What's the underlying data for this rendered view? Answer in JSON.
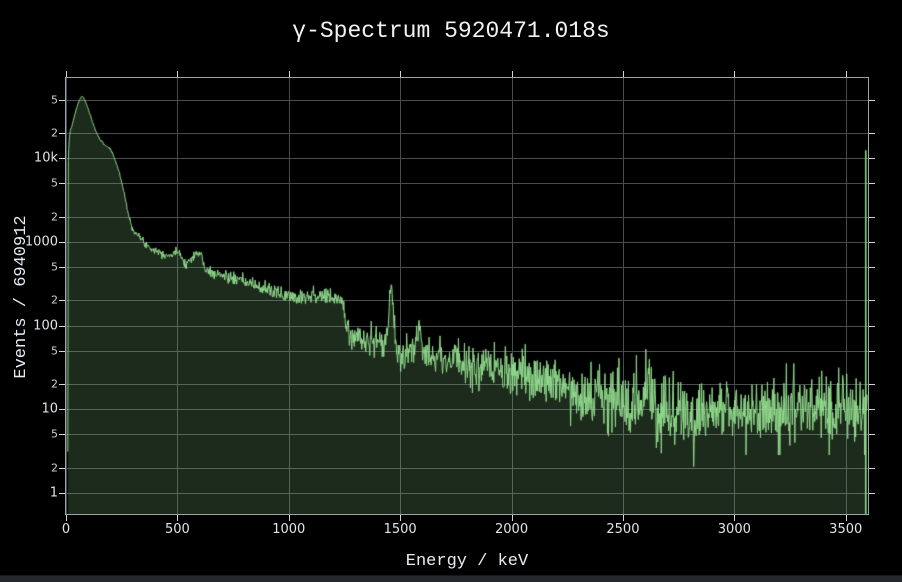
{
  "chart": {
    "title": "γ-Spectrum 5920471.018s",
    "x_axis_title": "Energy / keV",
    "y_axis_title": "Events / 6940912"
  },
  "chart_data": {
    "type": "area",
    "title": "γ-Spectrum 5920471.018s",
    "xlabel": "Energy / keV",
    "ylabel": "Events / 6940912",
    "total_events": "6940912",
    "live_time_s": "5920471.018",
    "xlim": [
      0,
      3600
    ],
    "ylim": [
      0.56,
      91000
    ],
    "yscale": "log",
    "grid": true,
    "legend": "none",
    "colors": {
      "background": "#000000",
      "line": "#90d98c",
      "fill": "rgba(144,217,140,0.20)",
      "gridline": "#474c50",
      "frame": "#9ba2a8",
      "tick": "#cfd5da",
      "text": "#e9edf2"
    },
    "xticks": [
      {
        "v": 0,
        "label": "0"
      },
      {
        "v": 500,
        "label": "500"
      },
      {
        "v": 1000,
        "label": "1000"
      },
      {
        "v": 1500,
        "label": "1500"
      },
      {
        "v": 2000,
        "label": "2000"
      },
      {
        "v": 2500,
        "label": "2500"
      },
      {
        "v": 3000,
        "label": "3000"
      },
      {
        "v": 3500,
        "label": "3500"
      }
    ],
    "yticks": [
      {
        "v": 1,
        "label": "1",
        "major": true
      },
      {
        "v": 2,
        "label": "2",
        "major": false
      },
      {
        "v": 5,
        "label": "5",
        "major": false
      },
      {
        "v": 10,
        "label": "10",
        "major": true
      },
      {
        "v": 20,
        "label": "2",
        "major": false
      },
      {
        "v": 50,
        "label": "5",
        "major": false
      },
      {
        "v": 100,
        "label": "100",
        "major": true
      },
      {
        "v": 200,
        "label": "2",
        "major": false
      },
      {
        "v": 500,
        "label": "5",
        "major": false
      },
      {
        "v": 1000,
        "label": "1000",
        "major": true
      },
      {
        "v": 2000,
        "label": "2",
        "major": false
      },
      {
        "v": 5000,
        "label": "5",
        "major": false
      },
      {
        "v": 10000,
        "label": "10k",
        "major": true
      },
      {
        "v": 20000,
        "label": "2",
        "major": false
      },
      {
        "v": 50000,
        "label": "5",
        "major": false
      }
    ],
    "envelope_points": [
      [
        8,
        0.9
      ],
      [
        10,
        9000
      ],
      [
        14,
        17000
      ],
      [
        20,
        22000
      ],
      [
        24,
        23500
      ],
      [
        28,
        25000
      ],
      [
        34,
        29000
      ],
      [
        40,
        33500
      ],
      [
        48,
        40000
      ],
      [
        56,
        46500
      ],
      [
        64,
        52000
      ],
      [
        72,
        55000
      ],
      [
        80,
        52500
      ],
      [
        88,
        47000
      ],
      [
        96,
        41500
      ],
      [
        106,
        34500
      ],
      [
        116,
        28500
      ],
      [
        128,
        23000
      ],
      [
        140,
        19500
      ],
      [
        155,
        16500
      ],
      [
        170,
        14800
      ],
      [
        185,
        13800
      ],
      [
        200,
        12800
      ],
      [
        212,
        11000
      ],
      [
        224,
        9000
      ],
      [
        236,
        7200
      ],
      [
        248,
        5500
      ],
      [
        260,
        4000
      ],
      [
        272,
        2750
      ],
      [
        284,
        1900
      ],
      [
        296,
        1520
      ],
      [
        310,
        1320
      ],
      [
        325,
        1180
      ],
      [
        345,
        1020
      ],
      [
        365,
        910
      ],
      [
        385,
        840
      ],
      [
        405,
        790
      ],
      [
        425,
        750
      ],
      [
        445,
        715
      ],
      [
        465,
        690
      ],
      [
        480,
        705
      ],
      [
        492,
        735
      ],
      [
        502,
        770
      ],
      [
        509,
        800
      ],
      [
        516,
        700
      ],
      [
        526,
        590
      ],
      [
        538,
        555
      ],
      [
        552,
        585
      ],
      [
        564,
        650
      ],
      [
        574,
        710
      ],
      [
        583,
        745
      ],
      [
        591,
        690
      ],
      [
        600,
        715
      ],
      [
        608,
        735
      ],
      [
        614,
        590
      ],
      [
        622,
        480
      ],
      [
        634,
        450
      ],
      [
        650,
        435
      ],
      [
        670,
        420
      ],
      [
        690,
        405
      ],
      [
        710,
        395
      ],
      [
        740,
        370
      ],
      [
        770,
        350
      ],
      [
        800,
        335
      ],
      [
        830,
        315
      ],
      [
        860,
        295
      ],
      [
        885,
        275
      ],
      [
        900,
        268
      ],
      [
        911,
        288
      ],
      [
        922,
        258
      ],
      [
        940,
        248
      ],
      [
        960,
        240
      ],
      [
        985,
        232
      ],
      [
        1010,
        227
      ],
      [
        1040,
        222
      ],
      [
        1075,
        228
      ],
      [
        1105,
        233
      ],
      [
        1135,
        227
      ],
      [
        1165,
        218
      ],
      [
        1195,
        212
      ],
      [
        1220,
        207
      ],
      [
        1240,
        198
      ],
      [
        1252,
        130
      ],
      [
        1264,
        88
      ],
      [
        1285,
        76
      ],
      [
        1310,
        71
      ],
      [
        1340,
        68
      ],
      [
        1370,
        66
      ],
      [
        1395,
        64
      ],
      [
        1415,
        62
      ],
      [
        1430,
        61
      ],
      [
        1442,
        80
      ],
      [
        1450,
        150
      ],
      [
        1457,
        300
      ],
      [
        1461,
        310
      ],
      [
        1466,
        210
      ],
      [
        1472,
        100
      ],
      [
        1480,
        60
      ],
      [
        1492,
        48
      ],
      [
        1505,
        44
      ],
      [
        1520,
        42
      ],
      [
        1538,
        44
      ],
      [
        1555,
        48
      ],
      [
        1570,
        60
      ],
      [
        1580,
        85
      ],
      [
        1588,
        113
      ],
      [
        1595,
        85
      ],
      [
        1604,
        58
      ],
      [
        1615,
        48
      ],
      [
        1632,
        44
      ],
      [
        1655,
        46
      ],
      [
        1680,
        43
      ],
      [
        1705,
        41
      ],
      [
        1730,
        38
      ],
      [
        1755,
        40
      ],
      [
        1764,
        42
      ],
      [
        1775,
        37
      ],
      [
        1800,
        34
      ],
      [
        1830,
        32
      ],
      [
        1865,
        31
      ],
      [
        1900,
        30
      ],
      [
        1945,
        28
      ],
      [
        1990,
        26
      ],
      [
        2030,
        25
      ],
      [
        2060,
        24
      ],
      [
        2090,
        25
      ],
      [
        2103,
        26
      ],
      [
        2120,
        24
      ],
      [
        2150,
        22
      ],
      [
        2180,
        21
      ],
      [
        2204,
        23
      ],
      [
        2225,
        20
      ],
      [
        2255,
        18.5
      ],
      [
        2290,
        17
      ],
      [
        2330,
        15.5
      ],
      [
        2370,
        14
      ],
      [
        2410,
        13
      ],
      [
        2450,
        12
      ],
      [
        2490,
        11.5
      ],
      [
        2530,
        11.5
      ],
      [
        2560,
        12.5
      ],
      [
        2585,
        14
      ],
      [
        2600,
        17
      ],
      [
        2614,
        24
      ],
      [
        2624,
        16
      ],
      [
        2640,
        12
      ],
      [
        2665,
        9
      ],
      [
        2667,
        1.6
      ],
      [
        2670,
        9
      ],
      [
        2700,
        10
      ],
      [
        2740,
        10
      ],
      [
        2780,
        9.5
      ],
      [
        2815,
        9
      ],
      [
        2817,
        1.0
      ],
      [
        2820,
        9
      ],
      [
        2860,
        9.5
      ],
      [
        2900,
        10
      ],
      [
        2950,
        10
      ],
      [
        3000,
        10
      ],
      [
        3060,
        10
      ],
      [
        3120,
        10
      ],
      [
        3180,
        10
      ],
      [
        3240,
        10
      ],
      [
        3300,
        10
      ],
      [
        3360,
        10
      ],
      [
        3420,
        10
      ],
      [
        3470,
        10
      ],
      [
        3520,
        10
      ],
      [
        3560,
        10
      ],
      [
        3596,
        10
      ]
    ],
    "overflow_spike": {
      "keV": 3590,
      "counts": 12500
    },
    "noise": {
      "relative_amplitude": 1.6,
      "max_relative": 0.45,
      "seed": 7,
      "samples": 1604
    }
  }
}
